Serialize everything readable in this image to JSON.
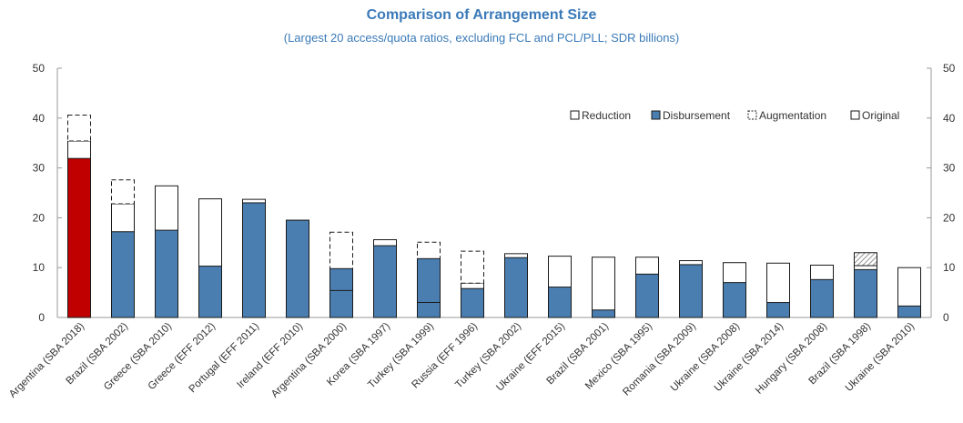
{
  "chart_data": {
    "type": "bar",
    "title": "Comparison of Arrangement Size",
    "subtitle": "(Largest 20 access/quota ratios, excluding FCL and PCL/PLL; SDR billions)",
    "ylim": [
      0,
      50
    ],
    "yticks": [
      0,
      10,
      20,
      30,
      40,
      50
    ],
    "grid": false,
    "legend_position": "top-right",
    "colors": {
      "disbursement": "#4a7eb0",
      "highlight": "#c00000",
      "original": "#ffffff",
      "outline": "#1a1a1a"
    },
    "legend": [
      {
        "key": "reduction",
        "label": "Reduction"
      },
      {
        "key": "disbursement",
        "label": "Disbursement"
      },
      {
        "key": "augmentation",
        "label": "Augmentation"
      },
      {
        "key": "original",
        "label": "Original"
      }
    ],
    "categories": [
      "Argentina (SBA 2018)",
      "Brazil (SBA 2002)",
      "Greece (SBA 2010)",
      "Greece (EFF 2012)",
      "Portugal (EFF 2011)",
      "Ireland (EFF 2010)",
      "Argentina (SBA 2000)",
      "Korea (SBA 1997)",
      "Turkey (SBA 1999)",
      "Russia (EFF 1996)",
      "Turkey (SBA 2002)",
      "Ukraine (EFF 2015)",
      "Brazil (SBA 2001)",
      "Mexico (SBA 1995)",
      "Romania (SBA 2009)",
      "Ukraine (SBA 2008)",
      "Ukraine (SBA 2014)",
      "Hungary (SBA 2008)",
      "Brazil (SBA 1998)",
      "Ukraine (SBA 2010)"
    ],
    "series": [
      {
        "name": "Original",
        "values": [
          35.4,
          22.8,
          26.4,
          23.8,
          23.7,
          19.5,
          5.4,
          15.6,
          3.0,
          6.9,
          12.8,
          12.3,
          12.1,
          12.1,
          11.4,
          11.0,
          10.9,
          10.5,
          10.4,
          10.0
        ]
      },
      {
        "name": "Disbursement",
        "values": [
          31.9,
          17.2,
          17.5,
          10.3,
          23.0,
          19.5,
          9.8,
          14.4,
          11.8,
          5.8,
          12.0,
          6.1,
          1.5,
          8.7,
          10.6,
          7.0,
          3.0,
          7.6,
          9.6,
          2.3
        ]
      },
      {
        "name": "Augmentation",
        "values": [
          5.2,
          4.8,
          0,
          0,
          0,
          0,
          11.7,
          0,
          12.1,
          6.4,
          0,
          0,
          0,
          0,
          0,
          0,
          0,
          0,
          0,
          0
        ]
      },
      {
        "name": "Reduction",
        "values": [
          0,
          0,
          0,
          0,
          0,
          0,
          0,
          0,
          0,
          0,
          0,
          0,
          0,
          0,
          0,
          0,
          0,
          0,
          2.6,
          0
        ]
      }
    ],
    "highlight_category": "Argentina (SBA 2018)"
  }
}
